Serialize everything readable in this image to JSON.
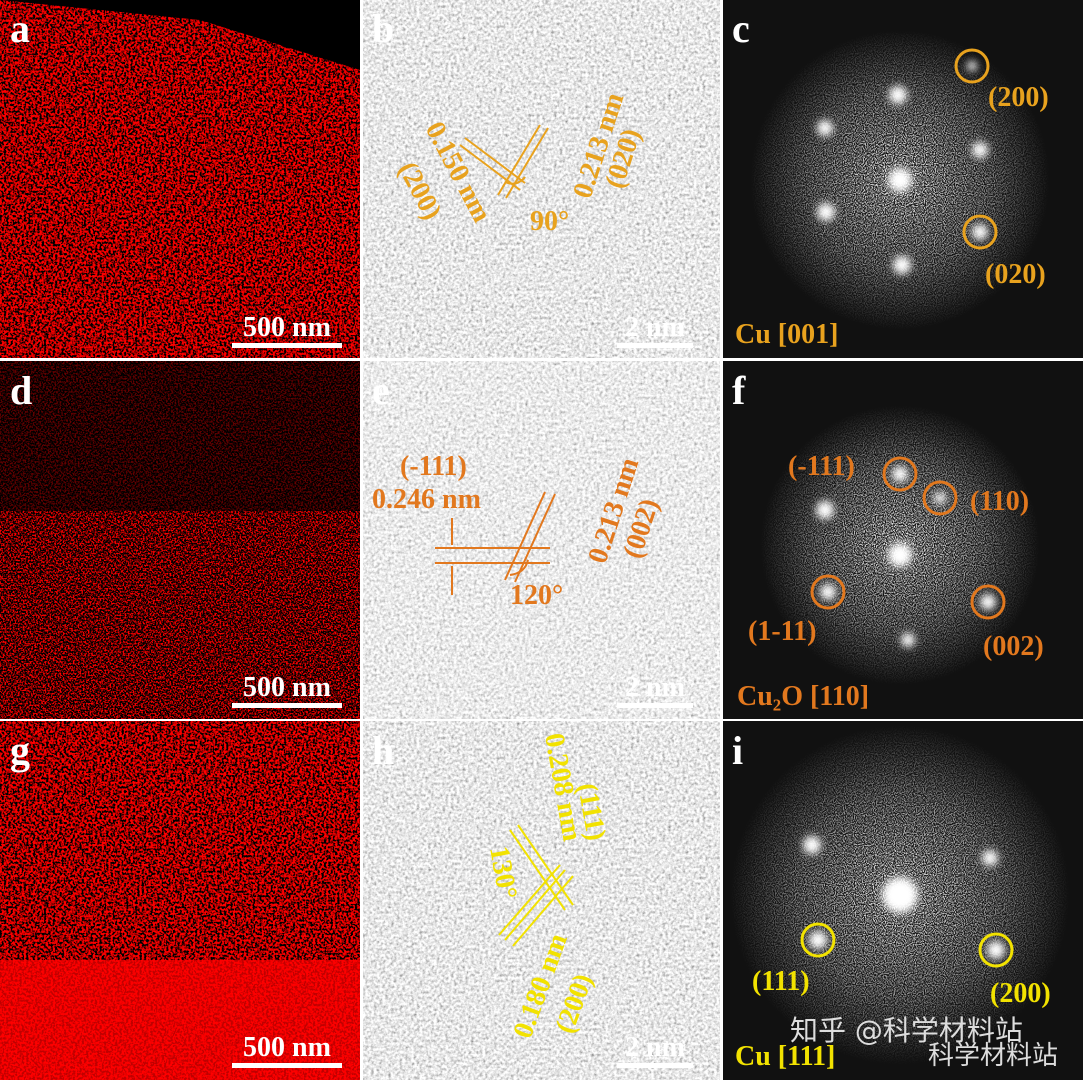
{
  "panels": [
    {
      "label": "a",
      "scale_bar": "500 nm"
    },
    {
      "label": "b",
      "scale_bar": "2 nm",
      "annotations": [
        "0.150 nm",
        "(200)",
        "0.213 nm",
        "(020)",
        "90°"
      ]
    },
    {
      "label": "c",
      "annotations": [
        "(200)",
        "(020)"
      ],
      "caption": "Cu [001]"
    },
    {
      "label": "d",
      "scale_bar": "500 nm"
    },
    {
      "label": "e",
      "scale_bar": "2 nm",
      "annotations": [
        "(-111)",
        "0.246 nm",
        "0.213 nm",
        "(002)",
        "120°"
      ]
    },
    {
      "label": "f",
      "annotations": [
        "(-111)",
        "(110)",
        "(1-11)",
        "(002)"
      ],
      "caption": "Cu₂O [110]"
    },
    {
      "label": "g",
      "scale_bar": "500 nm"
    },
    {
      "label": "h",
      "scale_bar": "2 nm",
      "annotations": [
        "(111)",
        "0.208 nm",
        "130°",
        "0.180 nm",
        "(200)"
      ]
    },
    {
      "label": "i",
      "annotations": [
        "(111)",
        "(200)"
      ],
      "caption": "Cu [111]"
    }
  ],
  "watermark": [
    "知乎 @科学材料站",
    "科学材料站"
  ]
}
